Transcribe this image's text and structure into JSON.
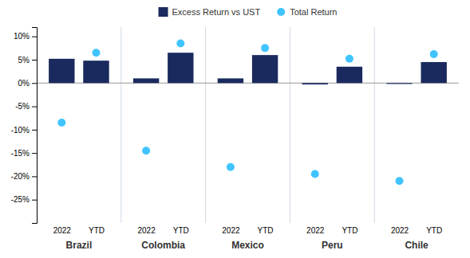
{
  "chart_data": {
    "type": "bar",
    "categories": [
      "2022",
      "YTD",
      "2022",
      "YTD",
      "2022",
      "YTD",
      "2022",
      "YTD",
      "2022",
      "YTD"
    ],
    "groups": [
      "Brazil",
      "Colombia",
      "Mexico",
      "Peru",
      "Chile"
    ],
    "series": [
      {
        "name": "Excess Return vs UST",
        "type": "bar",
        "color": "#1a2a5e",
        "values": [
          5.2,
          4.8,
          1.0,
          6.5,
          1.0,
          6.0,
          -0.3,
          3.5,
          -0.2,
          4.5
        ]
      },
      {
        "name": "Total Return",
        "type": "scatter",
        "marker": "circle",
        "color": "#40c4ff",
        "values": [
          -8.5,
          6.5,
          -14.5,
          8.5,
          -18.0,
          7.5,
          -19.5,
          5.2,
          -21.0,
          6.2
        ]
      }
    ],
    "ylim": [
      -30,
      12
    ],
    "yticks": [
      {
        "value": 10,
        "label": "10%"
      },
      {
        "value": 5,
        "label": "5%"
      },
      {
        "value": 0,
        "label": "0%"
      },
      {
        "value": -5,
        "label": "-5%"
      },
      {
        "value": -10,
        "label": "-10%"
      },
      {
        "value": -15,
        "label": "-15%"
      },
      {
        "value": -20,
        "label": "-20%"
      },
      {
        "value": -25,
        "label": "-25%"
      }
    ],
    "grid": false,
    "legend": "top"
  }
}
